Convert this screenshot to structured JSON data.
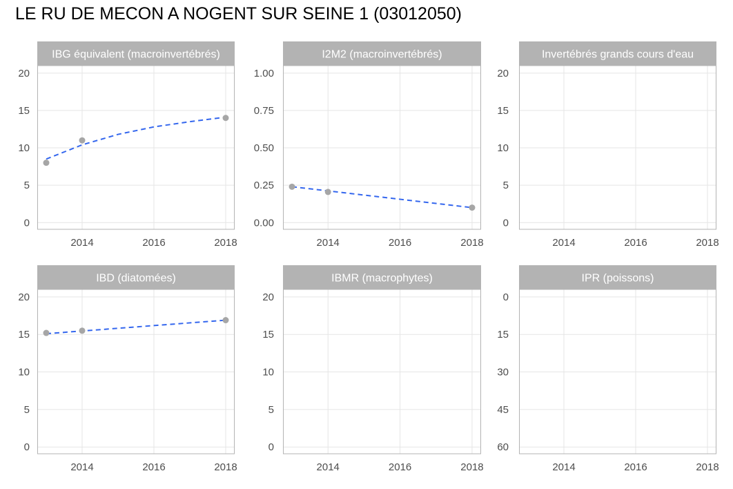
{
  "page_title": "LE RU DE MECON A NOGENT SUR SEINE 1 (03012050)",
  "colors": {
    "strip_background": "#b3b3b3",
    "strip_text": "#ffffff",
    "gridline": "#e5e5e5",
    "panel_border": "#b3b3b3",
    "tick_text": "#4d4d4d",
    "point": "#a6a6a6",
    "trend_line": "#3366ee"
  },
  "chart_data": [
    {
      "type": "scatter",
      "title": "IBG équivalent (macroinvertébrés)",
      "x_ticks": [
        2014,
        2016,
        2018
      ],
      "xlim": [
        2012.75,
        2018.25
      ],
      "y_ticks": [
        0,
        5,
        10,
        15,
        20
      ],
      "y_tick_labels": [
        "0",
        "5",
        "10",
        "15",
        "20"
      ],
      "ylim": [
        -0.9,
        21.0
      ],
      "y_reversed": false,
      "points": [
        {
          "x": 2013,
          "y": 8
        },
        {
          "x": 2014,
          "y": 11
        },
        {
          "x": 2018,
          "y": 14
        }
      ],
      "trend": {
        "x": [
          2013,
          2014,
          2015,
          2016,
          2017,
          2018
        ],
        "y": [
          8.5,
          10.4,
          11.8,
          12.8,
          13.5,
          14.1
        ]
      }
    },
    {
      "type": "scatter",
      "title": "I2M2 (macroinvertébrés)",
      "x_ticks": [
        2014,
        2016,
        2018
      ],
      "xlim": [
        2012.75,
        2018.25
      ],
      "y_ticks": [
        0,
        0.25,
        0.5,
        0.75,
        1.0
      ],
      "y_tick_labels": [
        "0.00",
        "0.25",
        "0.50",
        "0.75",
        "1.00"
      ],
      "ylim": [
        -0.045,
        1.05
      ],
      "y_reversed": false,
      "points": [
        {
          "x": 2013,
          "y": 0.24
        },
        {
          "x": 2014,
          "y": 0.205
        },
        {
          "x": 2018,
          "y": 0.1
        }
      ],
      "trend": {
        "x": [
          2013,
          2018
        ],
        "y": [
          0.24,
          0.1
        ]
      }
    },
    {
      "type": "scatter",
      "title": "Invertébrés grands cours d'eau",
      "x_ticks": [
        2014,
        2016,
        2018
      ],
      "xlim": [
        2012.75,
        2018.25
      ],
      "y_ticks": [
        0,
        5,
        10,
        15,
        20
      ],
      "y_tick_labels": [
        "0",
        "5",
        "10",
        "15",
        "20"
      ],
      "ylim": [
        -0.9,
        21.0
      ],
      "y_reversed": false,
      "points": [],
      "trend": null
    },
    {
      "type": "scatter",
      "title": "IBD (diatomées)",
      "x_ticks": [
        2014,
        2016,
        2018
      ],
      "xlim": [
        2012.75,
        2018.25
      ],
      "y_ticks": [
        0,
        5,
        10,
        15,
        20
      ],
      "y_tick_labels": [
        "0",
        "5",
        "10",
        "15",
        "20"
      ],
      "ylim": [
        -0.9,
        21.0
      ],
      "y_reversed": false,
      "points": [
        {
          "x": 2013,
          "y": 15.2
        },
        {
          "x": 2014,
          "y": 15.5
        },
        {
          "x": 2018,
          "y": 16.9
        }
      ],
      "trend": {
        "x": [
          2013,
          2018
        ],
        "y": [
          15.1,
          16.9
        ]
      }
    },
    {
      "type": "scatter",
      "title": "IBMR (macrophytes)",
      "x_ticks": [
        2014,
        2016,
        2018
      ],
      "xlim": [
        2012.75,
        2018.25
      ],
      "y_ticks": [
        0,
        5,
        10,
        15,
        20
      ],
      "y_tick_labels": [
        "0",
        "5",
        "10",
        "15",
        "20"
      ],
      "ylim": [
        -0.9,
        21.0
      ],
      "y_reversed": false,
      "points": [],
      "trend": null
    },
    {
      "type": "scatter",
      "title": "IPR (poissons)",
      "x_ticks": [
        2014,
        2016,
        2018
      ],
      "xlim": [
        2012.75,
        2018.25
      ],
      "y_ticks": [
        0,
        15,
        30,
        45,
        60
      ],
      "y_tick_labels": [
        "0",
        "15",
        "30",
        "45",
        "60"
      ],
      "ylim": [
        -3.0,
        62.7
      ],
      "y_reversed": true,
      "points": [],
      "trend": null
    }
  ]
}
